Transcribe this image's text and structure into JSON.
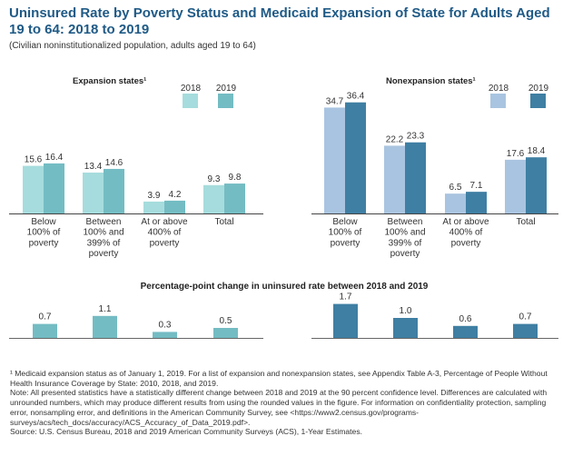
{
  "title": "Uninsured Rate by Poverty Status and Medicaid Expansion of State for Adults Aged 19 to 64: 2018 to 2019",
  "subtitle": "(Civilian noninstitutionalized population, adults aged 19 to 64)",
  "colors": {
    "exp2018": "#a6dcdd",
    "exp2019": "#74bcc3",
    "non2018": "#a9c4e0",
    "non2019": "#3f7fa3",
    "title": "#1f5a86"
  },
  "chart_data": [
    {
      "type": "bar",
      "title": "Expansion states¹",
      "legend": [
        "2018",
        "2019"
      ],
      "categories": [
        [
          "Below",
          "100% of",
          "poverty"
        ],
        [
          "Between",
          "100% and",
          "399% of",
          "poverty"
        ],
        [
          "At or above",
          "400% of",
          "poverty"
        ],
        [
          "Total"
        ]
      ],
      "series": [
        {
          "name": "2018",
          "values": [
            15.6,
            13.4,
            3.9,
            9.3
          ]
        },
        {
          "name": "2019",
          "values": [
            16.4,
            14.6,
            4.2,
            9.8
          ]
        }
      ],
      "ylim": [
        0,
        40
      ]
    },
    {
      "type": "bar",
      "title": "Nonexpansion states¹",
      "legend": [
        "2018",
        "2019"
      ],
      "categories": [
        [
          "Below",
          "100% of",
          "poverty"
        ],
        [
          "Between",
          "100% and",
          "399% of",
          "poverty"
        ],
        [
          "At or above",
          "400% of",
          "poverty"
        ],
        [
          "Total"
        ]
      ],
      "series": [
        {
          "name": "2018",
          "values": [
            34.7,
            22.2,
            6.5,
            17.6
          ]
        },
        {
          "name": "2019",
          "values": [
            36.4,
            23.3,
            7.1,
            18.4
          ]
        }
      ],
      "ylim": [
        0,
        40
      ]
    },
    {
      "type": "bar",
      "title": "Percentage-point change in uninsured rate between 2018 and 2019",
      "series": [
        {
          "name": "Expansion states",
          "values": [
            0.7,
            1.1,
            0.3,
            0.5
          ]
        },
        {
          "name": "Nonexpansion states",
          "values": [
            1.7,
            1.0,
            0.6,
            0.7
          ]
        }
      ],
      "ylim": [
        0,
        2
      ]
    }
  ],
  "footnotes": [
    "¹ Medicaid expansion status as of January 1, 2019. For a list of expansion and nonexpansion states, see Appendix Table A-3, Percentage of People Without Health Insurance Coverage by State: 2010, 2018, and 2019.",
    "Note: All presented statistics have a statistically different change between 2018 and 2019 at the 90 percent confidence level. Differences are calculated with unrounded numbers, which may produce different results from using the rounded values in the figure. For information on confidentiality protection, sampling error, nonsampling error, and definitions in the American Community Survey, see <https://www2.census.gov/programs-surveys/acs/tech_docs/accuracy/ACS_Accuracy_of_Data_2019.pdf>.",
    "Source: U.S. Census Bureau, 2018 and 2019 American Community Surveys (ACS), 1-Year Estimates."
  ]
}
